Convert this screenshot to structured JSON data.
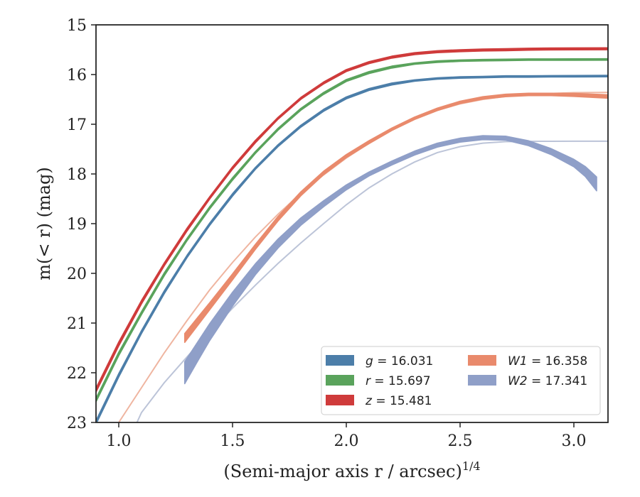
{
  "chart_data": {
    "type": "line",
    "xlabel": "(Semi-major axis r / arcsec)",
    "xlabel_exponent": "1/4",
    "ylabel": "m(< r) (mag)",
    "xlim": [
      0.9,
      3.15
    ],
    "ylim": [
      23,
      15
    ],
    "y_inverted": true,
    "grid": false,
    "legend_position": "lower-right",
    "x_ticks": [
      {
        "value": 1.0,
        "label": "1.0"
      },
      {
        "value": 1.5,
        "label": "1.5"
      },
      {
        "value": 2.0,
        "label": "2.0"
      },
      {
        "value": 2.5,
        "label": "2.5"
      },
      {
        "value": 3.0,
        "label": "3.0"
      }
    ],
    "y_ticks": [
      {
        "value": 15,
        "label": "15"
      },
      {
        "value": 16,
        "label": "16"
      },
      {
        "value": 17,
        "label": "17"
      },
      {
        "value": 18,
        "label": "18"
      },
      {
        "value": 19,
        "label": "19"
      },
      {
        "value": 20,
        "label": "20"
      },
      {
        "value": 21,
        "label": "21"
      },
      {
        "value": 22,
        "label": "22"
      },
      {
        "value": 23,
        "label": "23"
      }
    ],
    "series": [
      {
        "key": "g",
        "name": "g = 16.031",
        "band": "g",
        "total": "16.031",
        "color": "#4c7ea9",
        "x": [
          0.9,
          1.0,
          1.1,
          1.2,
          1.3,
          1.4,
          1.5,
          1.6,
          1.7,
          1.8,
          1.9,
          2.0,
          2.1,
          2.2,
          2.3,
          2.4,
          2.5,
          2.6,
          2.7,
          2.8,
          2.9,
          3.0,
          3.15
        ],
        "y": [
          23.0,
          22.05,
          21.18,
          20.38,
          19.66,
          19.01,
          18.42,
          17.89,
          17.43,
          17.04,
          16.72,
          16.47,
          16.3,
          16.19,
          16.12,
          16.08,
          16.06,
          16.05,
          16.04,
          16.04,
          16.035,
          16.033,
          16.031
        ],
        "width": [
          0.07,
          0.07,
          0.06,
          0.06,
          0.05,
          0.05,
          0.05,
          0.04,
          0.04,
          0.04,
          0.04,
          0.04,
          0.04,
          0.04,
          0.03,
          0.03,
          0.03,
          0.03,
          0.03,
          0.03,
          0.03,
          0.03,
          0.03
        ]
      },
      {
        "key": "r",
        "name": "r = 15.697",
        "band": "r",
        "total": "15.697",
        "color": "#5aa35c",
        "x": [
          0.9,
          1.0,
          1.1,
          1.2,
          1.3,
          1.4,
          1.5,
          1.6,
          1.7,
          1.8,
          1.9,
          2.0,
          2.1,
          2.2,
          2.3,
          2.4,
          2.5,
          2.6,
          2.7,
          2.8,
          2.9,
          3.0,
          3.15
        ],
        "y": [
          22.55,
          21.62,
          20.8,
          20.02,
          19.32,
          18.68,
          18.1,
          17.57,
          17.1,
          16.7,
          16.38,
          16.12,
          15.96,
          15.85,
          15.78,
          15.74,
          15.72,
          15.71,
          15.705,
          15.7,
          15.699,
          15.698,
          15.697
        ],
        "width": [
          0.07,
          0.07,
          0.06,
          0.06,
          0.05,
          0.05,
          0.05,
          0.04,
          0.04,
          0.04,
          0.04,
          0.04,
          0.04,
          0.04,
          0.03,
          0.03,
          0.03,
          0.03,
          0.03,
          0.03,
          0.03,
          0.03,
          0.03
        ]
      },
      {
        "key": "z",
        "name": "z = 15.481",
        "band": "z",
        "total": "15.481",
        "color": "#cf3b3b",
        "x": [
          0.9,
          1.0,
          1.1,
          1.2,
          1.3,
          1.4,
          1.5,
          1.6,
          1.7,
          1.8,
          1.9,
          2.0,
          2.1,
          2.2,
          2.3,
          2.4,
          2.5,
          2.6,
          2.7,
          2.8,
          2.9,
          3.0,
          3.15
        ],
        "y": [
          22.35,
          21.42,
          20.58,
          19.82,
          19.12,
          18.48,
          17.88,
          17.35,
          16.88,
          16.48,
          16.17,
          15.92,
          15.76,
          15.65,
          15.58,
          15.54,
          15.52,
          15.505,
          15.5,
          15.49,
          15.485,
          15.483,
          15.481
        ],
        "width": [
          0.08,
          0.08,
          0.07,
          0.06,
          0.06,
          0.05,
          0.05,
          0.05,
          0.04,
          0.04,
          0.04,
          0.04,
          0.04,
          0.04,
          0.04,
          0.04,
          0.04,
          0.04,
          0.04,
          0.04,
          0.04,
          0.04,
          0.04
        ]
      },
      {
        "key": "w1",
        "name": "W1 = 16.358",
        "band": "W1",
        "total": "16.358",
        "color": "#e98a6c",
        "x": [
          1.29,
          1.35,
          1.4,
          1.5,
          1.6,
          1.7,
          1.8,
          1.9,
          2.0,
          2.1,
          2.2,
          2.3,
          2.4,
          2.5,
          2.6,
          2.7,
          2.8,
          2.9,
          3.0,
          3.15
        ],
        "y": [
          21.3,
          20.95,
          20.66,
          20.07,
          19.47,
          18.9,
          18.4,
          17.98,
          17.64,
          17.36,
          17.1,
          16.88,
          16.7,
          16.56,
          16.47,
          16.42,
          16.4,
          16.4,
          16.41,
          16.44
        ],
        "width": [
          0.18,
          0.16,
          0.14,
          0.12,
          0.1,
          0.09,
          0.08,
          0.07,
          0.06,
          0.06,
          0.05,
          0.05,
          0.05,
          0.05,
          0.05,
          0.05,
          0.05,
          0.05,
          0.06,
          0.07
        ]
      },
      {
        "key": "w2",
        "name": "W2 = 17.341",
        "band": "W2",
        "total": "17.341",
        "color": "#8f9fc8",
        "x": [
          1.29,
          1.35,
          1.4,
          1.5,
          1.6,
          1.7,
          1.8,
          1.9,
          2.0,
          2.1,
          2.2,
          2.3,
          2.4,
          2.5,
          2.6,
          2.7,
          2.8,
          2.9,
          3.0,
          3.05,
          3.1
        ],
        "y": [
          22.0,
          21.55,
          21.18,
          20.52,
          19.92,
          19.4,
          18.96,
          18.6,
          18.27,
          18.0,
          17.78,
          17.58,
          17.42,
          17.32,
          17.27,
          17.28,
          17.38,
          17.55,
          17.78,
          17.95,
          18.2
        ],
        "width": [
          0.44,
          0.38,
          0.34,
          0.28,
          0.22,
          0.18,
          0.15,
          0.12,
          0.1,
          0.08,
          0.08,
          0.08,
          0.08,
          0.08,
          0.08,
          0.08,
          0.1,
          0.12,
          0.15,
          0.2,
          0.28
        ]
      }
    ],
    "models": [
      {
        "key": "w1-model",
        "color": "#efb5a0",
        "x": [
          1.0,
          1.1,
          1.2,
          1.3,
          1.4,
          1.5,
          1.6,
          1.7,
          1.8,
          1.9,
          2.0,
          2.1,
          2.2,
          2.3,
          2.4,
          2.5,
          2.6,
          2.7,
          2.8,
          2.9,
          3.0,
          3.15
        ],
        "y": [
          23.0,
          22.3,
          21.6,
          20.95,
          20.33,
          19.78,
          19.27,
          18.81,
          18.39,
          18.02,
          17.68,
          17.38,
          17.12,
          16.9,
          16.72,
          16.59,
          16.5,
          16.44,
          16.4,
          16.38,
          16.365,
          16.358
        ]
      },
      {
        "key": "w2-model",
        "color": "#bcc4d8",
        "x": [
          1.08,
          1.1,
          1.2,
          1.3,
          1.4,
          1.5,
          1.6,
          1.7,
          1.8,
          1.9,
          2.0,
          2.1,
          2.2,
          2.3,
          2.4,
          2.5,
          2.6,
          2.7,
          2.8,
          2.9,
          3.0,
          3.15
        ],
        "y": [
          23.0,
          22.8,
          22.2,
          21.68,
          21.18,
          20.7,
          20.24,
          19.8,
          19.39,
          19.0,
          18.62,
          18.28,
          18.0,
          17.76,
          17.57,
          17.45,
          17.38,
          17.35,
          17.345,
          17.343,
          17.342,
          17.341
        ]
      }
    ],
    "legend": {
      "columns": [
        [
          {
            "series": "g",
            "band": "g",
            "eq": " = 16.031"
          },
          {
            "series": "r",
            "band": "r",
            "eq": " = 15.697"
          },
          {
            "series": "z",
            "band": "z",
            "eq": " = 15.481"
          }
        ],
        [
          {
            "series": "w1",
            "band": "W1",
            "eq": " = 16.358"
          },
          {
            "series": "w2",
            "band": "W2",
            "eq": " = 17.341"
          }
        ]
      ]
    }
  }
}
